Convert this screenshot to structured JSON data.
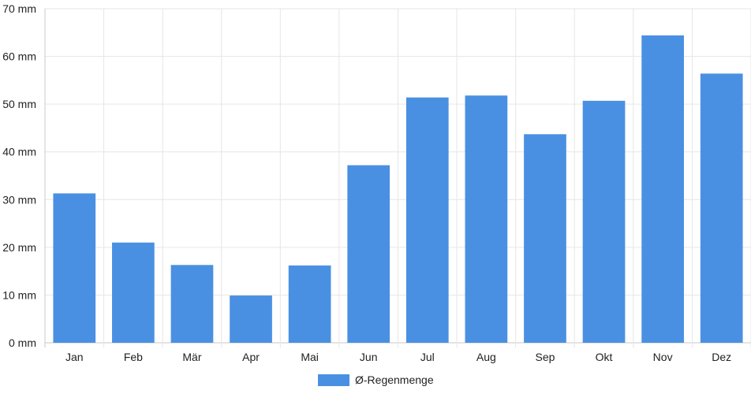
{
  "chart_data": {
    "type": "bar",
    "categories": [
      "Jan",
      "Feb",
      "Mär",
      "Apr",
      "Mai",
      "Jun",
      "Jul",
      "Aug",
      "Sep",
      "Okt",
      "Nov",
      "Dez"
    ],
    "series": [
      {
        "name": "Ø-Regenmenge",
        "values": [
          31.3,
          21.0,
          16.3,
          9.9,
          16.2,
          37.2,
          51.4,
          51.8,
          43.7,
          50.7,
          64.4,
          56.4
        ]
      }
    ],
    "ylim": [
      0,
      70
    ],
    "yticks": [
      0,
      10,
      20,
      30,
      40,
      50,
      60,
      70
    ],
    "ytick_labels": [
      "0 mm",
      "10 mm",
      "20 mm",
      "30 mm",
      "40 mm",
      "50 mm",
      "60 mm",
      "70 mm"
    ],
    "grid": true,
    "legend_position": "bottom",
    "colors": {
      "bar": "#4a90e2",
      "grid": "#e6e6e6",
      "axis": "#c8c8c8"
    }
  }
}
